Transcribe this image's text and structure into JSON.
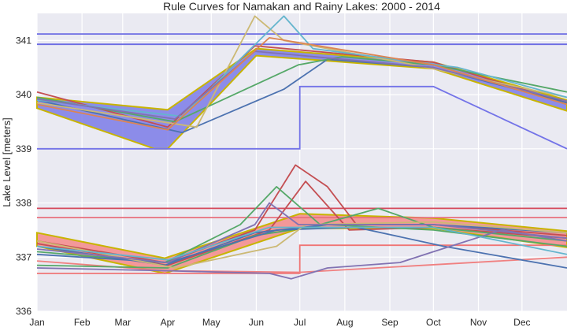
{
  "chart_data": {
    "type": "line",
    "title": "Rule Curves for Namakan and Rainy Lakes: 2000 - 2014",
    "xlabel": "",
    "ylabel": "Lake Level [meters]",
    "xlim": [
      0,
      365
    ],
    "ylim": [
      336,
      341.5
    ],
    "x_ticks": [
      {
        "label": "Jan",
        "day": 0
      },
      {
        "label": "Feb",
        "day": 31
      },
      {
        "label": "Mar",
        "day": 59
      },
      {
        "label": "Apr",
        "day": 90
      },
      {
        "label": "May",
        "day": 120
      },
      {
        "label": "Jun",
        "day": 151
      },
      {
        "label": "Jul",
        "day": 181
      },
      {
        "label": "Aug",
        "day": 212
      },
      {
        "label": "Sep",
        "day": 243
      },
      {
        "label": "Oct",
        "day": 273
      },
      {
        "label": "Nov",
        "day": 304
      },
      {
        "label": "Dec",
        "day": 334
      }
    ],
    "y_ticks": [
      336,
      337,
      338,
      339,
      340,
      341
    ],
    "grid": true,
    "background": "#EAEAF2",
    "rule_bands": [
      {
        "lake": "Namakan",
        "color": "#7b7be8",
        "upper": [
          [
            0,
            339.95
          ],
          [
            90,
            339.72
          ],
          [
            151,
            340.85
          ],
          [
            273,
            340.6
          ],
          [
            365,
            339.9
          ]
        ],
        "lower": [
          [
            0,
            339.75
          ],
          [
            81,
            339.0
          ],
          [
            90,
            339.0
          ],
          [
            151,
            340.72
          ],
          [
            273,
            340.48
          ],
          [
            365,
            339.7
          ]
        ]
      },
      {
        "lake": "Rainy",
        "color": "#f58a8a",
        "upper": [
          [
            0,
            337.45
          ],
          [
            88,
            336.98
          ],
          [
            181,
            337.8
          ],
          [
            273,
            337.72
          ],
          [
            365,
            337.48
          ]
        ],
        "lower": [
          [
            0,
            337.2
          ],
          [
            88,
            336.7
          ],
          [
            181,
            337.53
          ],
          [
            273,
            337.53
          ],
          [
            365,
            337.18
          ]
        ]
      }
    ],
    "limit_lines": [
      {
        "color": "#6b6be3",
        "points": [
          [
            0,
            341.12
          ],
          [
            365,
            341.12
          ]
        ]
      },
      {
        "color": "#6b6be3",
        "points": [
          [
            0,
            340.93
          ],
          [
            365,
            340.93
          ]
        ]
      },
      {
        "color": "#7373e8",
        "points": [
          [
            0,
            339.0
          ],
          [
            181,
            339.0
          ],
          [
            181,
            340.15
          ],
          [
            273,
            340.15
          ],
          [
            365,
            339.0
          ]
        ]
      },
      {
        "color": "#d64a5c",
        "points": [
          [
            0,
            337.9
          ],
          [
            365,
            337.9
          ]
        ]
      },
      {
        "color": "#e8707c",
        "points": [
          [
            0,
            337.73
          ],
          [
            365,
            337.73
          ]
        ]
      },
      {
        "color": "#f07575",
        "points": [
          [
            0,
            336.7
          ],
          [
            181,
            336.7
          ],
          [
            181,
            337.22
          ],
          [
            365,
            337.22
          ]
        ]
      },
      {
        "color": "#f08080",
        "points": [
          [
            0,
            336.93
          ],
          [
            88,
            336.75
          ],
          [
            181,
            336.72
          ],
          [
            365,
            337.0
          ]
        ]
      }
    ],
    "series": [
      {
        "color": "#c44e52",
        "points": [
          [
            0,
            340.05
          ],
          [
            90,
            339.4
          ],
          [
            150,
            340.9
          ],
          [
            273,
            340.6
          ],
          [
            365,
            339.85
          ]
        ]
      },
      {
        "color": "#4c72b0",
        "points": [
          [
            0,
            339.9
          ],
          [
            100,
            339.3
          ],
          [
            170,
            340.1
          ],
          [
            200,
            340.65
          ],
          [
            273,
            340.5
          ],
          [
            365,
            339.85
          ]
        ]
      },
      {
        "color": "#55a868",
        "points": [
          [
            0,
            339.95
          ],
          [
            95,
            339.5
          ],
          [
            180,
            340.55
          ],
          [
            210,
            340.7
          ],
          [
            273,
            340.55
          ],
          [
            365,
            340.05
          ]
        ]
      },
      {
        "color": "#ccb974",
        "points": [
          [
            0,
            339.85
          ],
          [
            110,
            339.4
          ],
          [
            150,
            341.45
          ],
          [
            170,
            341.0
          ],
          [
            260,
            340.55
          ],
          [
            365,
            339.95
          ]
        ]
      },
      {
        "color": "#64b5cd",
        "points": [
          [
            0,
            339.9
          ],
          [
            100,
            339.6
          ],
          [
            170,
            341.45
          ],
          [
            190,
            340.85
          ],
          [
            290,
            340.5
          ],
          [
            365,
            339.95
          ]
        ]
      },
      {
        "color": "#8172b2",
        "points": [
          [
            0,
            339.92
          ],
          [
            95,
            339.55
          ],
          [
            150,
            340.8
          ],
          [
            273,
            340.5
          ],
          [
            365,
            339.88
          ]
        ]
      },
      {
        "color": "#dd8452",
        "points": [
          [
            0,
            339.82
          ],
          [
            90,
            339.35
          ],
          [
            160,
            341.05
          ],
          [
            273,
            340.55
          ],
          [
            365,
            339.82
          ]
        ]
      },
      {
        "color": "#c44e52",
        "points": [
          [
            0,
            337.3
          ],
          [
            88,
            336.9
          ],
          [
            150,
            337.5
          ],
          [
            178,
            338.7
          ],
          [
            200,
            338.3
          ],
          [
            220,
            337.6
          ],
          [
            273,
            337.6
          ],
          [
            365,
            337.4
          ]
        ]
      },
      {
        "color": "#c44e52",
        "points": [
          [
            0,
            337.25
          ],
          [
            90,
            336.85
          ],
          [
            160,
            337.5
          ],
          [
            185,
            338.4
          ],
          [
            215,
            337.5
          ],
          [
            273,
            337.55
          ],
          [
            365,
            337.35
          ]
        ]
      },
      {
        "color": "#55a868",
        "points": [
          [
            0,
            337.1
          ],
          [
            88,
            336.9
          ],
          [
            140,
            337.6
          ],
          [
            165,
            338.3
          ],
          [
            195,
            337.6
          ],
          [
            235,
            337.9
          ],
          [
            273,
            337.55
          ],
          [
            365,
            337.3
          ]
        ]
      },
      {
        "color": "#55a868",
        "points": [
          [
            0,
            336.85
          ],
          [
            90,
            336.8
          ],
          [
            150,
            337.4
          ],
          [
            200,
            337.6
          ],
          [
            273,
            337.5
          ],
          [
            365,
            337.2
          ]
        ]
      },
      {
        "color": "#4c72b0",
        "points": [
          [
            0,
            337.05
          ],
          [
            90,
            336.9
          ],
          [
            165,
            337.5
          ],
          [
            220,
            337.55
          ],
          [
            280,
            337.2
          ],
          [
            365,
            336.8
          ]
        ]
      },
      {
        "color": "#4c72b0",
        "points": [
          [
            0,
            337.2
          ],
          [
            88,
            336.85
          ],
          [
            150,
            337.45
          ],
          [
            200,
            337.6
          ],
          [
            273,
            337.6
          ],
          [
            365,
            337.45
          ]
        ]
      },
      {
        "color": "#8172b2",
        "points": [
          [
            0,
            336.8
          ],
          [
            88,
            336.75
          ],
          [
            160,
            336.7
          ],
          [
            175,
            336.6
          ],
          [
            200,
            336.8
          ],
          [
            250,
            336.9
          ],
          [
            273,
            337.1
          ],
          [
            320,
            337.5
          ],
          [
            365,
            337.3
          ]
        ]
      },
      {
        "color": "#ccb974",
        "points": [
          [
            0,
            337.3
          ],
          [
            95,
            336.8
          ],
          [
            165,
            337.2
          ],
          [
            185,
            337.6
          ],
          [
            273,
            337.65
          ],
          [
            365,
            337.45
          ]
        ]
      },
      {
        "color": "#8172b2",
        "points": [
          [
            0,
            337.15
          ],
          [
            90,
            336.9
          ],
          [
            150,
            337.6
          ],
          [
            160,
            338.0
          ],
          [
            180,
            337.6
          ],
          [
            273,
            337.6
          ],
          [
            365,
            337.35
          ]
        ]
      },
      {
        "color": "#64b5cd",
        "points": [
          [
            0,
            337.2
          ],
          [
            90,
            336.95
          ],
          [
            160,
            337.55
          ],
          [
            273,
            337.55
          ],
          [
            365,
            337.05
          ]
        ]
      }
    ]
  }
}
